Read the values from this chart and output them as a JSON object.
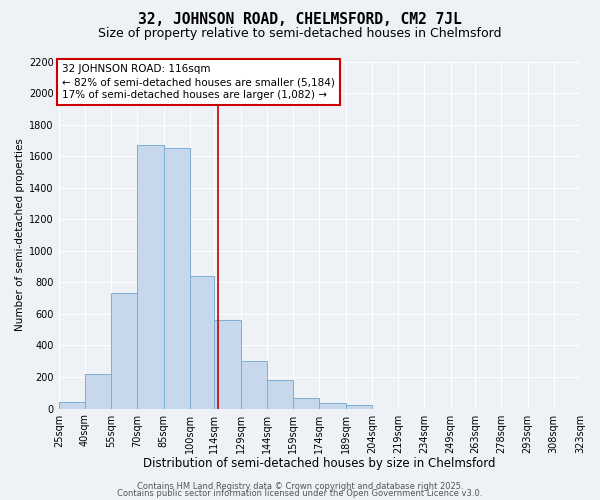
{
  "title": "32, JOHNSON ROAD, CHELMSFORD, CM2 7JL",
  "subtitle": "Size of property relative to semi-detached houses in Chelmsford",
  "xlabel": "Distribution of semi-detached houses by size in Chelmsford",
  "ylabel": "Number of semi-detached properties",
  "bar_edges": [
    25,
    40,
    55,
    70,
    85,
    100,
    114,
    129,
    144,
    159,
    174,
    189,
    204,
    219,
    234,
    249,
    263,
    278,
    293,
    308,
    323
  ],
  "bar_heights": [
    40,
    220,
    730,
    1670,
    1650,
    840,
    560,
    300,
    180,
    70,
    35,
    20,
    0,
    0,
    0,
    0,
    0,
    0,
    0,
    0
  ],
  "bar_color": "#c8d8ec",
  "bar_edge_color": "#7aafd4",
  "property_line_x": 116,
  "property_line_color": "#cc0000",
  "annotation_line1": "32 JOHNSON ROAD: 116sqm",
  "annotation_line2": "← 82% of semi-detached houses are smaller (5,184)",
  "annotation_line3": "17% of semi-detached houses are larger (1,082) →",
  "annotation_box_color": "#cc0000",
  "ylim": [
    0,
    2200
  ],
  "yticks": [
    0,
    200,
    400,
    600,
    800,
    1000,
    1200,
    1400,
    1600,
    1800,
    2000,
    2200
  ],
  "tick_labels": [
    "25sqm",
    "40sqm",
    "55sqm",
    "70sqm",
    "85sqm",
    "100sqm",
    "114sqm",
    "129sqm",
    "144sqm",
    "159sqm",
    "174sqm",
    "189sqm",
    "204sqm",
    "219sqm",
    "234sqm",
    "249sqm",
    "263sqm",
    "278sqm",
    "293sqm",
    "308sqm",
    "323sqm"
  ],
  "background_color": "#eef2f7",
  "grid_color": "#ffffff",
  "footer_line1": "Contains HM Land Registry data © Crown copyright and database right 2025.",
  "footer_line2": "Contains public sector information licensed under the Open Government Licence v3.0.",
  "title_fontsize": 10.5,
  "subtitle_fontsize": 9,
  "xlabel_fontsize": 8.5,
  "ylabel_fontsize": 7.5,
  "tick_fontsize": 7,
  "annotation_fontsize": 7.5,
  "footer_fontsize": 6
}
